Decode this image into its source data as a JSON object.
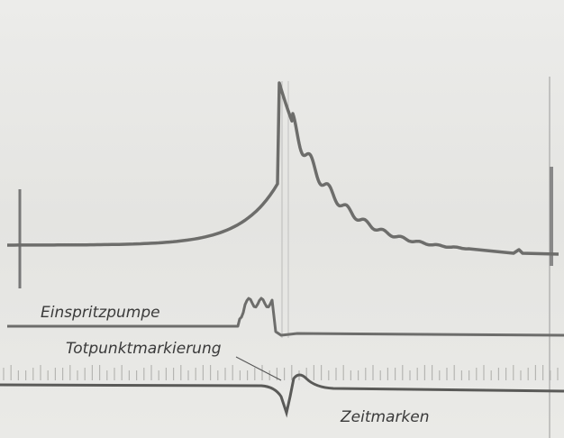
{
  "labels": {
    "injection_pump": "Einspritzpumpe",
    "dead_center_mark": "Totpunktmarkierung",
    "time_marks": "Zeitmarken"
  }
}
